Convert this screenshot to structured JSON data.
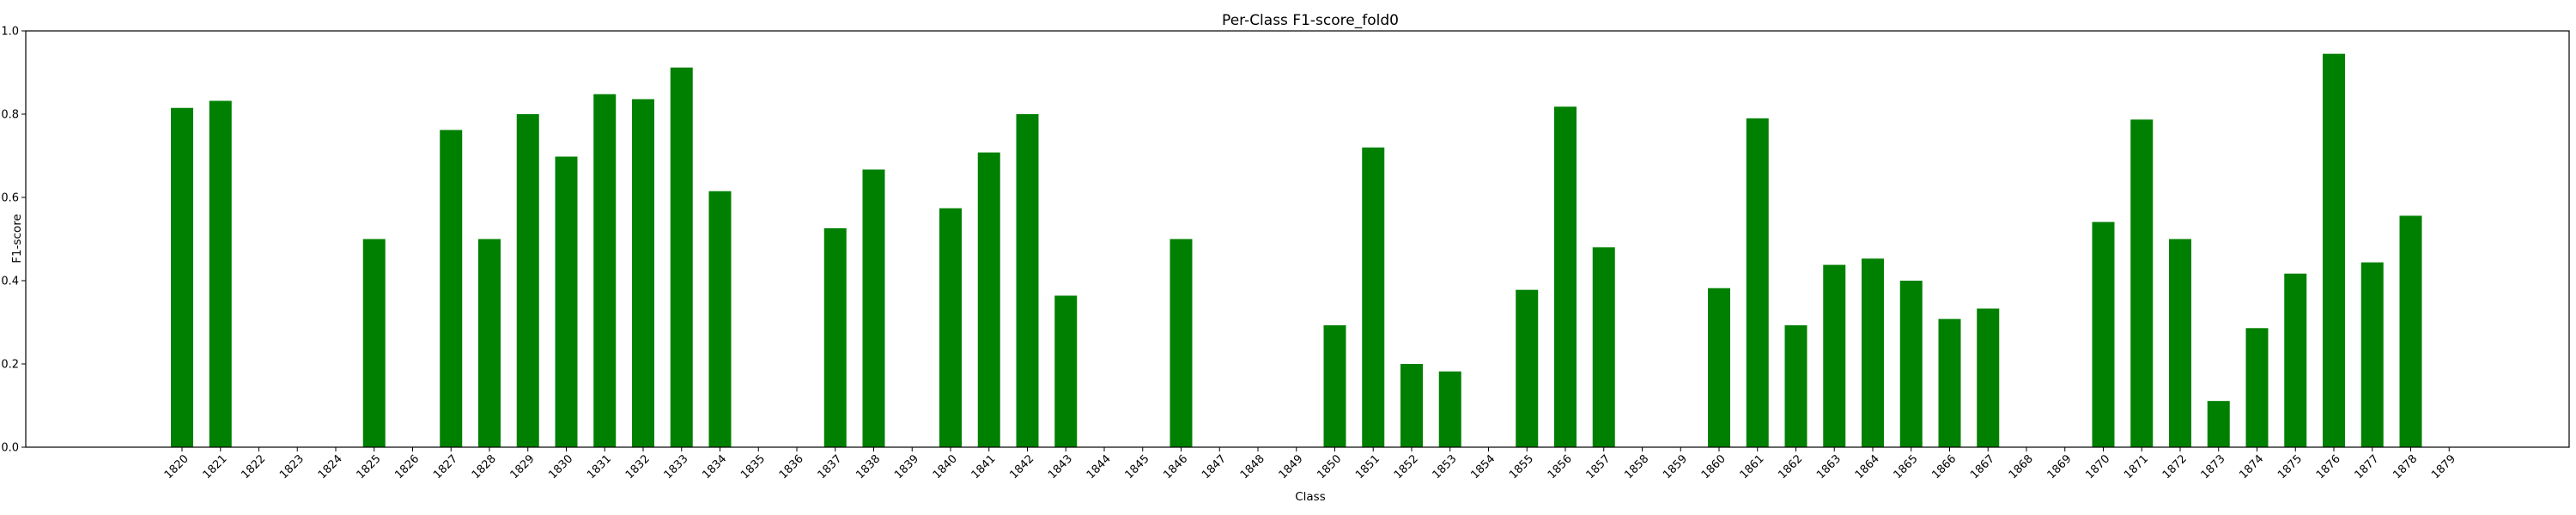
{
  "chart_data": {
    "type": "bar",
    "title": "Per-Class F1-score_fold0",
    "xlabel": "Class",
    "ylabel": "F1-score",
    "ylim": [
      0,
      1.0
    ],
    "yticks": [
      "0.0",
      "0.2",
      "0.4",
      "0.6",
      "0.8",
      "1.0"
    ],
    "grid": false,
    "bar_color": "#008000",
    "categories": [
      "1820",
      "1821",
      "1822",
      "1823",
      "1824",
      "1825",
      "1826",
      "1827",
      "1828",
      "1829",
      "1830",
      "1831",
      "1832",
      "1833",
      "1834",
      "1835",
      "1836",
      "1837",
      "1838",
      "1839",
      "1840",
      "1841",
      "1842",
      "1843",
      "1844",
      "1845",
      "1846",
      "1847",
      "1848",
      "1849",
      "1850",
      "1851",
      "1852",
      "1853",
      "1854",
      "1855",
      "1856",
      "1857",
      "1858",
      "1859",
      "1860",
      "1861",
      "1862",
      "1863",
      "1864",
      "1865",
      "1866",
      "1867",
      "1868",
      "1869",
      "1870",
      "1871",
      "1872",
      "1873",
      "1874",
      "1875",
      "1876",
      "1877",
      "1878",
      "1879"
    ],
    "values": [
      0.815,
      0.832,
      0,
      0,
      0,
      0.5,
      0,
      0.762,
      0.5,
      0.8,
      0.698,
      0.848,
      0.836,
      0.912,
      0.615,
      0,
      0,
      0.526,
      0.667,
      0,
      0.574,
      0.708,
      0.8,
      0.364,
      0,
      0,
      0.5,
      0,
      0,
      0,
      0.293,
      0.72,
      0.2,
      0.182,
      0,
      0.378,
      0.818,
      0.48,
      0,
      0,
      0.382,
      0.79,
      0.293,
      0.438,
      0.453,
      0.4,
      0.308,
      0.333,
      0,
      0,
      0.541,
      0.787,
      0.5,
      0.111,
      0.286,
      0.417,
      0.945,
      0.444,
      0.556,
      0
    ]
  }
}
